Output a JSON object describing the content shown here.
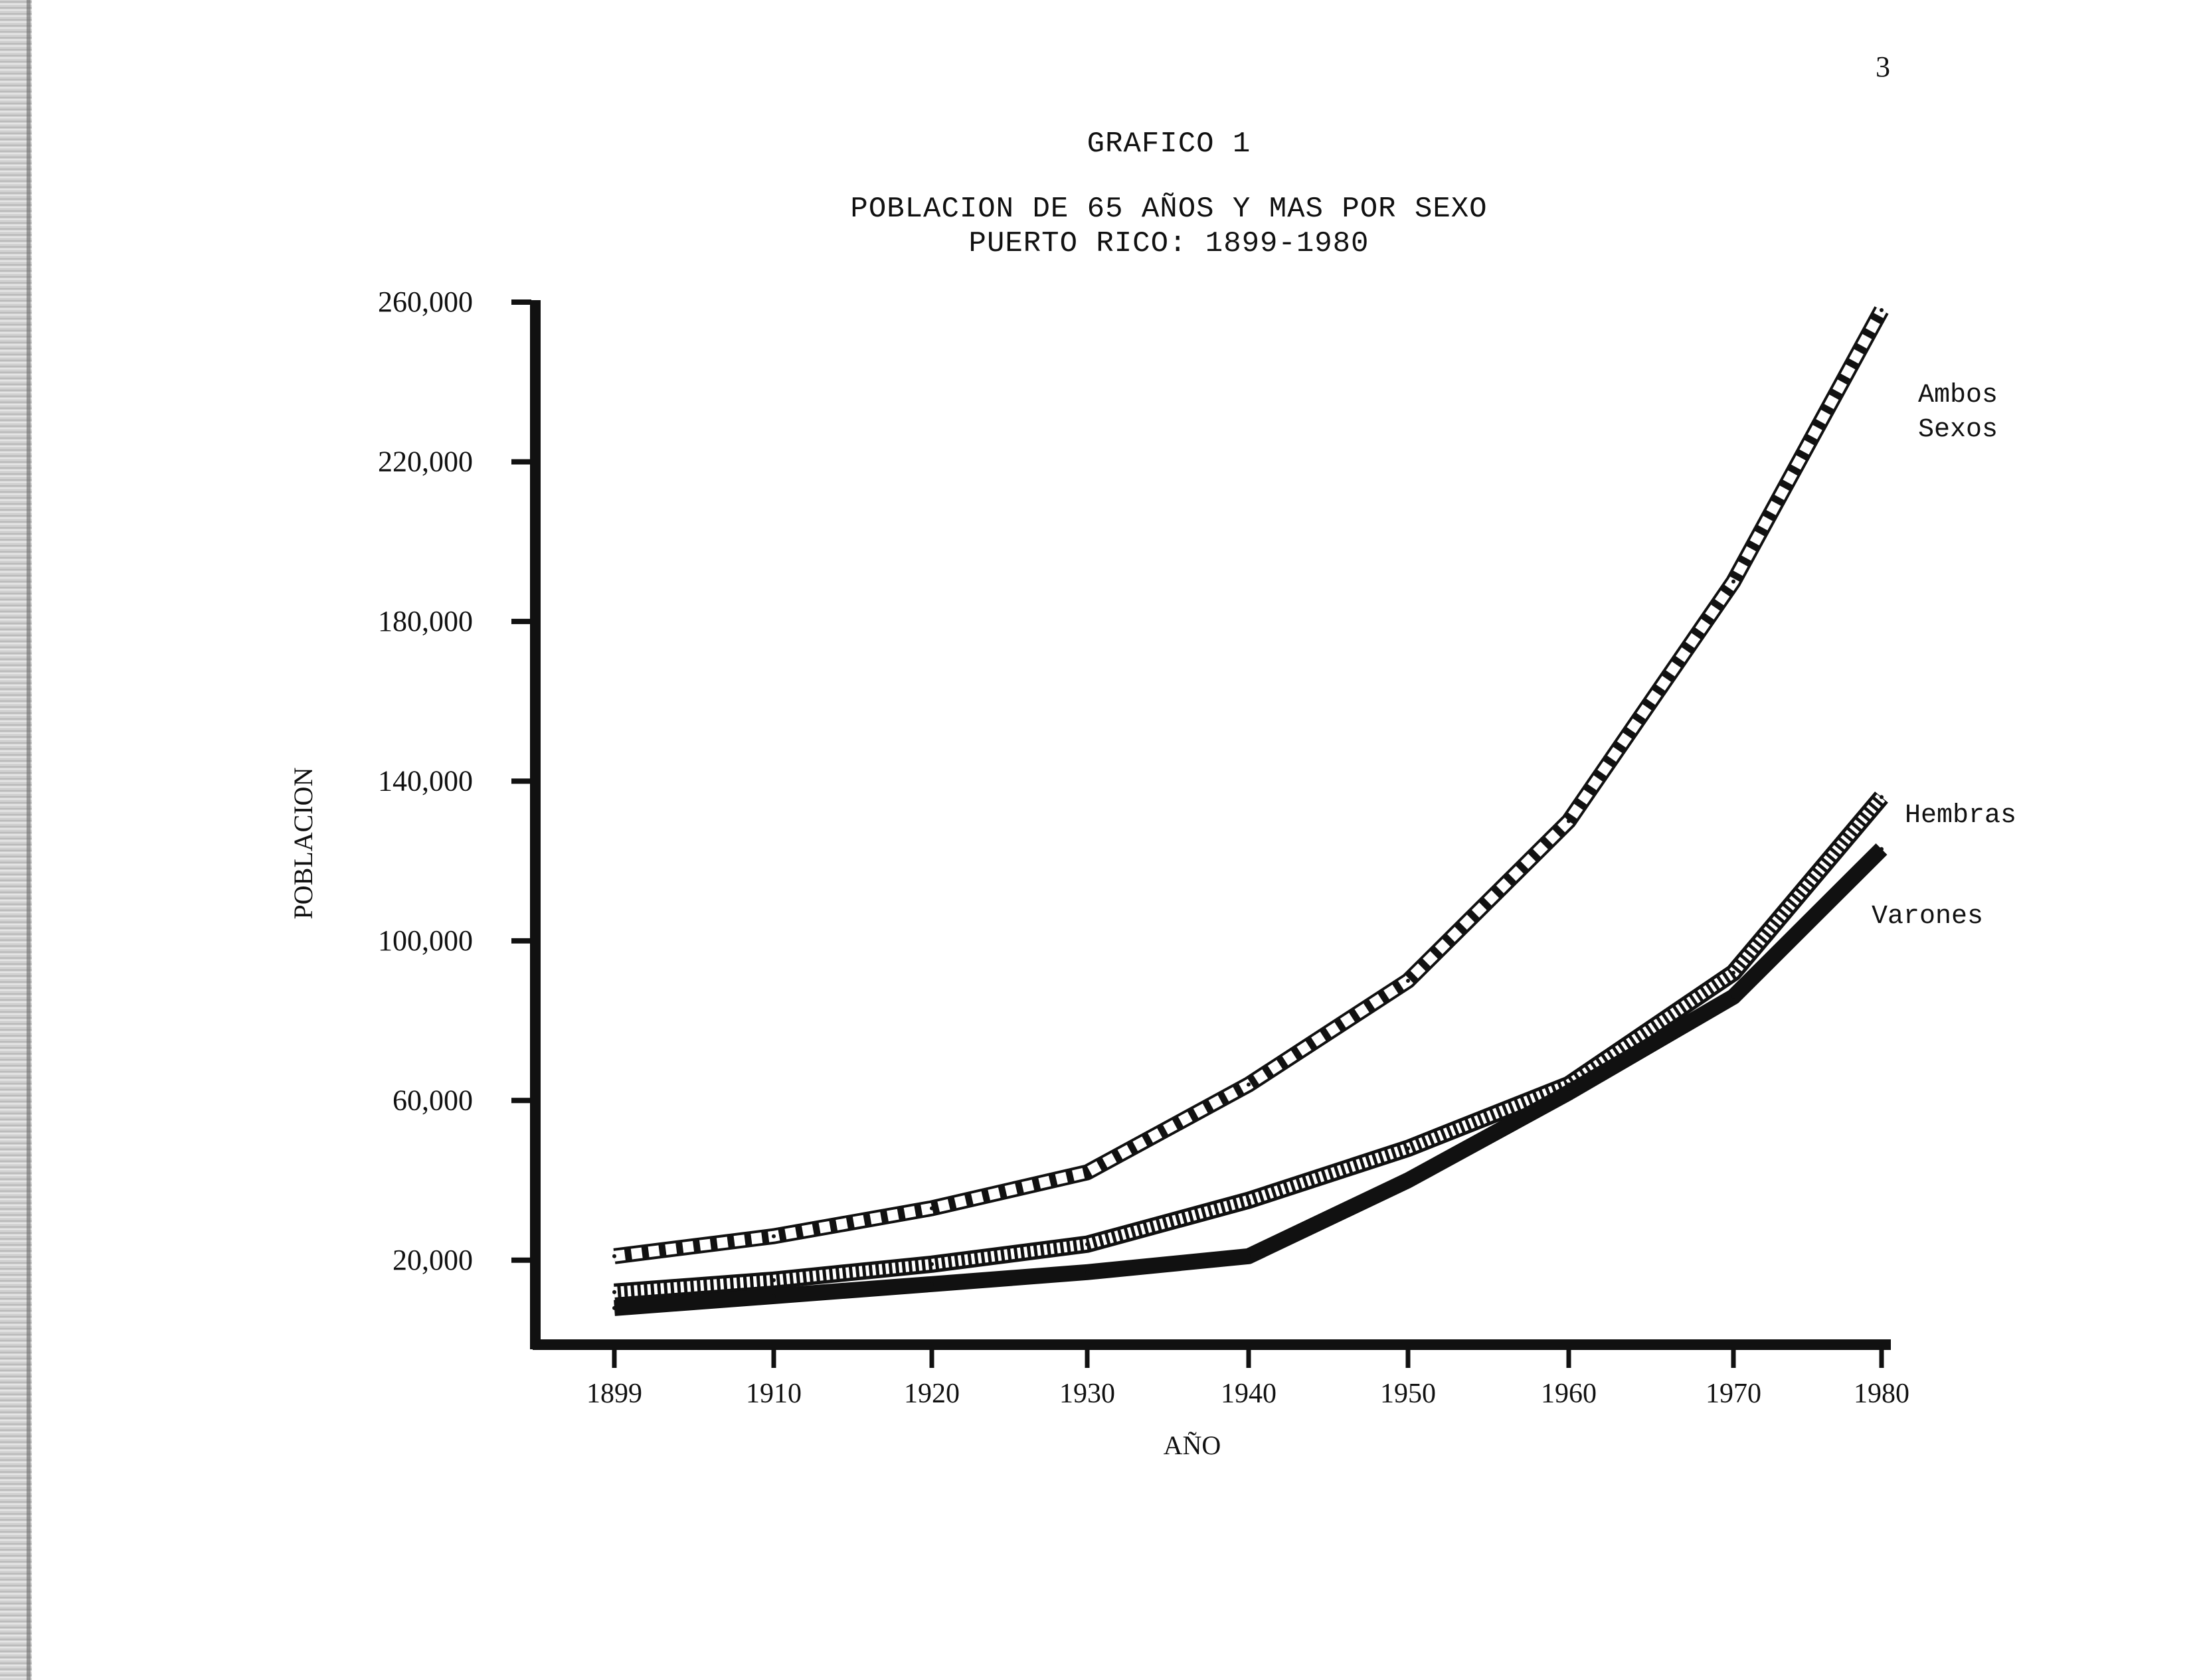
{
  "page_number": "3",
  "chart_data": {
    "type": "line",
    "heading": "GRAFICO 1",
    "title": "POBLACION DE 65 AÑOS Y MAS POR SEXO",
    "subtitle": "PUERTO RICO: 1899-1980",
    "xlabel": "AÑO",
    "ylabel": "POBLACION",
    "x": [
      1899,
      1910,
      1920,
      1930,
      1940,
      1950,
      1960,
      1970,
      1980
    ],
    "x_tick_labels": [
      "1899",
      "1910",
      "1920",
      "1930",
      "1940",
      "1950",
      "1960",
      "1970",
      "1980"
    ],
    "y_ticks": [
      20000,
      60000,
      100000,
      140000,
      180000,
      220000,
      260000
    ],
    "y_tick_labels": [
      "20,000",
      "60,000",
      "100,000",
      "140,000",
      "180,000",
      "220,000",
      "260,000"
    ],
    "ylim": [
      0,
      260000
    ],
    "grid": false,
    "series": [
      {
        "name": "Ambos Sexos",
        "label_lines": [
          "Ambos",
          "Sexos"
        ],
        "style": "hatched",
        "values": [
          21000,
          26000,
          33000,
          42000,
          64000,
          90000,
          130000,
          190000,
          258000
        ]
      },
      {
        "name": "Hembras",
        "label_lines": [
          "Hembras"
        ],
        "style": "dotted",
        "values": [
          12000,
          15000,
          19000,
          24000,
          35000,
          48000,
          64000,
          92000,
          136000
        ]
      },
      {
        "name": "Varones",
        "label_lines": [
          "Varones"
        ],
        "style": "solid",
        "values": [
          8000,
          11000,
          14000,
          17000,
          21000,
          40000,
          62000,
          86000,
          123000
        ]
      }
    ]
  }
}
